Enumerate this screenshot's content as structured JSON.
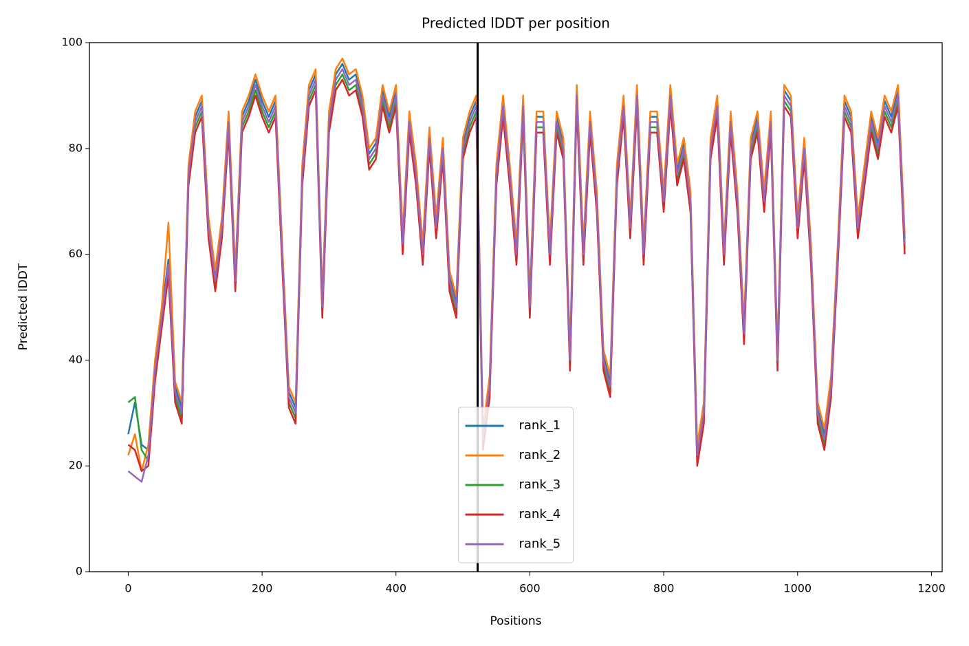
{
  "chart_data": {
    "type": "line",
    "title": "Predicted lDDT per position",
    "xlabel": "Positions",
    "ylabel": "Predicted lDDT",
    "x": [
      0,
      10,
      20,
      30,
      40,
      50,
      60,
      70,
      80,
      90,
      100,
      110,
      120,
      130,
      140,
      150,
      160,
      170,
      180,
      190,
      200,
      210,
      220,
      230,
      240,
      250,
      260,
      270,
      280,
      290,
      300,
      310,
      320,
      330,
      340,
      350,
      360,
      370,
      380,
      390,
      400,
      410,
      420,
      430,
      440,
      450,
      460,
      470,
      480,
      490,
      500,
      510,
      520,
      530,
      540,
      550,
      560,
      570,
      580,
      590,
      600,
      610,
      620,
      630,
      640,
      650,
      660,
      670,
      680,
      690,
      700,
      710,
      720,
      730,
      740,
      750,
      760,
      770,
      780,
      790,
      800,
      810,
      820,
      830,
      840,
      850,
      860,
      870,
      880,
      890,
      900,
      910,
      920,
      930,
      940,
      950,
      960,
      970,
      980,
      990,
      1000,
      1010,
      1020,
      1030,
      1040,
      1050,
      1060,
      1070,
      1080,
      1090,
      1100,
      1110,
      1120,
      1130,
      1140,
      1150,
      1160
    ],
    "series": [
      {
        "name": "rank_1",
        "color": "#1f77b4",
        "values": [
          26,
          32,
          24,
          23,
          39,
          49,
          59,
          35,
          31,
          76,
          86,
          89,
          66,
          56,
          66,
          86,
          56,
          86,
          89,
          93,
          89,
          86,
          89,
          61,
          34,
          31,
          76,
          91,
          94,
          51,
          86,
          94,
          96,
          93,
          94,
          89,
          79,
          81,
          91,
          86,
          91,
          63,
          86,
          76,
          61,
          83,
          66,
          81,
          56,
          51,
          81,
          86,
          89,
          26,
          36,
          76,
          89,
          76,
          61,
          89,
          51,
          86,
          86,
          61,
          86,
          81,
          41,
          91,
          61,
          86,
          71,
          41,
          36,
          76,
          89,
          66,
          91,
          61,
          86,
          86,
          71,
          91,
          76,
          81,
          71,
          23,
          31,
          81,
          89,
          61,
          86,
          71,
          46,
          81,
          86,
          71,
          86,
          41,
          91,
          89,
          66,
          81,
          61,
          31,
          26,
          36,
          61,
          89,
          86,
          66,
          76,
          86,
          81,
          89,
          86,
          91,
          63
        ]
      },
      {
        "name": "rank_2",
        "color": "#ff7f0e",
        "values": [
          22,
          26,
          19,
          24,
          40,
          50,
          66,
          36,
          32,
          77,
          87,
          90,
          67,
          57,
          67,
          87,
          57,
          87,
          90,
          94,
          90,
          87,
          90,
          62,
          35,
          32,
          77,
          92,
          95,
          52,
          87,
          95,
          97,
          94,
          95,
          90,
          80,
          82,
          92,
          87,
          92,
          64,
          87,
          77,
          62,
          84,
          67,
          82,
          57,
          52,
          82,
          87,
          90,
          27,
          37,
          77,
          90,
          77,
          62,
          90,
          52,
          87,
          87,
          62,
          87,
          82,
          42,
          92,
          62,
          87,
          72,
          42,
          37,
          77,
          90,
          67,
          92,
          62,
          87,
          87,
          72,
          92,
          77,
          82,
          72,
          24,
          32,
          82,
          90,
          62,
          87,
          72,
          47,
          82,
          87,
          72,
          87,
          42,
          92,
          90,
          67,
          82,
          62,
          32,
          27,
          37,
          62,
          90,
          87,
          67,
          77,
          87,
          82,
          90,
          87,
          92,
          64
        ]
      },
      {
        "name": "rank_3",
        "color": "#2ca02c",
        "values": [
          32,
          33,
          23,
          21,
          37,
          47,
          57,
          33,
          29,
          74,
          84,
          87,
          64,
          54,
          64,
          84,
          54,
          84,
          87,
          91,
          87,
          84,
          87,
          59,
          32,
          29,
          74,
          89,
          92,
          49,
          84,
          92,
          94,
          91,
          92,
          87,
          77,
          79,
          89,
          84,
          89,
          61,
          84,
          74,
          59,
          81,
          64,
          79,
          54,
          49,
          79,
          84,
          87,
          24,
          34,
          74,
          87,
          74,
          59,
          87,
          49,
          84,
          84,
          59,
          84,
          79,
          39,
          89,
          59,
          84,
          69,
          39,
          34,
          74,
          87,
          64,
          89,
          59,
          84,
          84,
          69,
          89,
          74,
          79,
          69,
          21,
          29,
          79,
          87,
          59,
          84,
          69,
          44,
          79,
          84,
          69,
          84,
          39,
          89,
          87,
          64,
          79,
          59,
          29,
          24,
          34,
          59,
          87,
          84,
          64,
          74,
          84,
          79,
          87,
          84,
          89,
          61
        ]
      },
      {
        "name": "rank_4",
        "color": "#d62728",
        "values": [
          24,
          23,
          19,
          20,
          36,
          46,
          56,
          32,
          28,
          73,
          83,
          86,
          63,
          53,
          63,
          83,
          53,
          83,
          86,
          90,
          86,
          83,
          86,
          58,
          31,
          28,
          73,
          88,
          91,
          48,
          83,
          91,
          93,
          90,
          91,
          86,
          76,
          78,
          88,
          83,
          88,
          60,
          83,
          73,
          58,
          80,
          63,
          78,
          53,
          48,
          78,
          83,
          86,
          23,
          33,
          73,
          86,
          73,
          58,
          86,
          48,
          83,
          83,
          58,
          83,
          78,
          38,
          88,
          58,
          83,
          68,
          38,
          33,
          73,
          86,
          63,
          88,
          58,
          83,
          83,
          68,
          88,
          73,
          78,
          68,
          20,
          28,
          78,
          86,
          58,
          83,
          68,
          43,
          78,
          83,
          68,
          83,
          38,
          88,
          86,
          63,
          78,
          58,
          28,
          23,
          33,
          58,
          86,
          83,
          63,
          73,
          83,
          78,
          86,
          83,
          88,
          60
        ]
      },
      {
        "name": "rank_5",
        "color": "#9467bd",
        "values": [
          19,
          18,
          17,
          22,
          38,
          48,
          58,
          34,
          30,
          75,
          85,
          88,
          65,
          55,
          65,
          85,
          55,
          85,
          88,
          92,
          88,
          85,
          88,
          60,
          33,
          30,
          75,
          90,
          93,
          50,
          85,
          93,
          95,
          92,
          93,
          88,
          78,
          80,
          90,
          85,
          90,
          62,
          85,
          75,
          60,
          82,
          65,
          80,
          55,
          50,
          80,
          85,
          88,
          25,
          35,
          75,
          88,
          75,
          60,
          88,
          50,
          85,
          85,
          60,
          85,
          80,
          40,
          90,
          60,
          85,
          70,
          40,
          35,
          75,
          88,
          65,
          90,
          60,
          85,
          85,
          70,
          90,
          75,
          80,
          70,
          22,
          30,
          80,
          88,
          60,
          85,
          70,
          45,
          80,
          85,
          70,
          85,
          40,
          90,
          88,
          65,
          80,
          60,
          30,
          25,
          35,
          60,
          88,
          85,
          65,
          75,
          85,
          80,
          88,
          85,
          90,
          62
        ]
      }
    ],
    "xlim": [
      -58,
      1216
    ],
    "xticks": [
      0,
      200,
      400,
      600,
      800,
      1000,
      1200
    ],
    "ylim": [
      0,
      100
    ],
    "yticks": [
      0,
      20,
      40,
      60,
      80,
      100
    ],
    "vline": 522,
    "vline_color": "#000000",
    "legend": "lower center"
  }
}
